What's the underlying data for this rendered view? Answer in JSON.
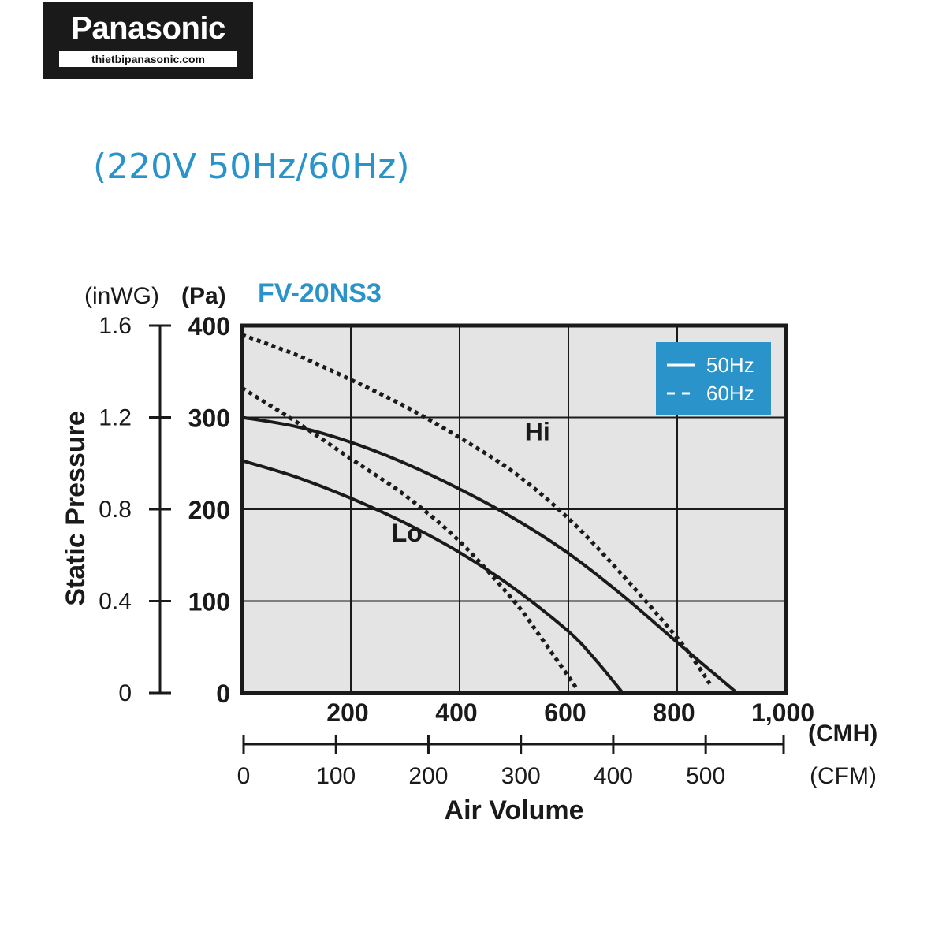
{
  "logo": {
    "brand": "Panasonic",
    "site": "thietbipanasonic.com"
  },
  "subtitle": "(220V 50Hz/60Hz)",
  "chart_data": {
    "type": "line",
    "title": "FV-20NS3",
    "xlabel": "Air Volume",
    "ylabel": "Static Pressure",
    "x_unit": "(CMH)",
    "x2_unit": "(CFM)",
    "y_unit": "(Pa)",
    "y2_unit": "(inWG)",
    "xlim": [
      0,
      1000
    ],
    "ylim": [
      0,
      400
    ],
    "x_ticks": [
      200,
      400,
      600,
      800
    ],
    "x_tick_labels": [
      "200",
      "400",
      "600",
      "800",
      "1,000"
    ],
    "x_tick_values": [
      200,
      400,
      600,
      800,
      1000
    ],
    "x2_ticks": [
      "0",
      "100",
      "200",
      "300",
      "400",
      "500"
    ],
    "x2_tick_values": [
      0,
      100,
      200,
      300,
      400,
      500
    ],
    "y_ticks": [
      "0",
      "100",
      "200",
      "300",
      "400"
    ],
    "y_tick_values": [
      0,
      100,
      200,
      300,
      400
    ],
    "y2_ticks": [
      "0",
      "0.4",
      "0.8",
      "1.2",
      "1.6"
    ],
    "y2_tick_values": [
      0,
      0.4,
      0.8,
      1.2,
      1.6
    ],
    "grid": true,
    "legend_position": "top-right",
    "legend": [
      {
        "label": "50Hz",
        "style": "solid"
      },
      {
        "label": "60Hz",
        "style": "dotted"
      }
    ],
    "annotations": [
      {
        "text": "Hi",
        "x": 520,
        "y": 275
      },
      {
        "text": "Lo",
        "x": 275,
        "y": 165
      }
    ],
    "series": [
      {
        "group": "Hi",
        "frequency": "50Hz",
        "style": "solid",
        "x": [
          0,
          100,
          200,
          300,
          400,
          500,
          600,
          700,
          800,
          870,
          910
        ],
        "y": [
          300,
          290,
          273,
          250,
          222,
          190,
          152,
          106,
          55,
          20,
          0
        ]
      },
      {
        "group": "Lo",
        "frequency": "50Hz",
        "style": "solid",
        "x": [
          0,
          100,
          200,
          300,
          400,
          500,
          600,
          650,
          700
        ],
        "y": [
          253,
          235,
          212,
          185,
          153,
          114,
          67,
          36,
          0
        ]
      },
      {
        "group": "Hi",
        "frequency": "60Hz",
        "style": "dotted",
        "x": [
          0,
          100,
          200,
          300,
          400,
          500,
          600,
          700,
          800,
          840,
          860
        ],
        "y": [
          390,
          368,
          341,
          312,
          278,
          240,
          190,
          128,
          60,
          28,
          10
        ]
      },
      {
        "group": "Lo",
        "frequency": "60Hz",
        "style": "dotted",
        "x": [
          0,
          100,
          200,
          300,
          400,
          500,
          550,
          600,
          615
        ],
        "y": [
          332,
          295,
          255,
          215,
          165,
          100,
          60,
          18,
          5
        ]
      }
    ],
    "colors": {
      "plot_background": "#e4e4e4",
      "accent": "#2a93c9",
      "legend_background": "#2a93c9",
      "line": "#1a1a1a"
    }
  }
}
